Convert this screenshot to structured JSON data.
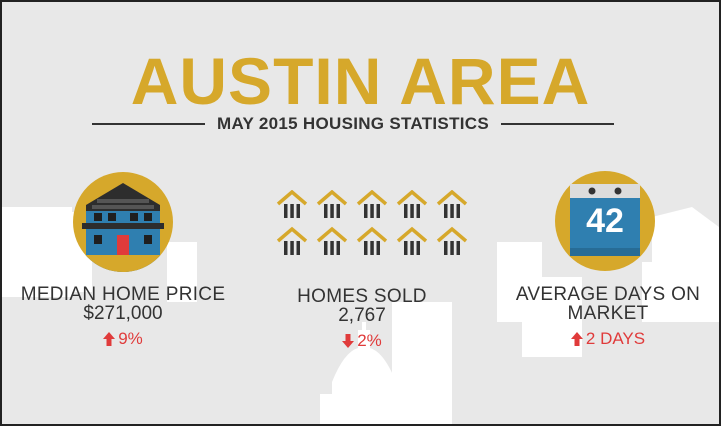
{
  "header": {
    "title": "AUSTIN AREA",
    "subtitle": "MAY 2015 HOUSING STATISTICS"
  },
  "colors": {
    "gold": "#d6a82b",
    "background": "#e8e8e8",
    "text": "#333333",
    "change_red": "#e03b3b",
    "house_blue": "#2f7fb0"
  },
  "stats": [
    {
      "icon": "house-icon",
      "label": "MEDIAN HOME PRICE",
      "value": "$271,000",
      "change": "9%",
      "direction": "up"
    },
    {
      "icon": "houses-grid-icon",
      "label": "HOMES SOLD",
      "value": "2,767",
      "change": "2%",
      "direction": "down"
    },
    {
      "icon": "calendar-icon",
      "label": "AVERAGE DAYS ON",
      "label_line2": "MARKET",
      "calendar_number": "42",
      "change": "2 DAYS",
      "direction": "up"
    }
  ]
}
